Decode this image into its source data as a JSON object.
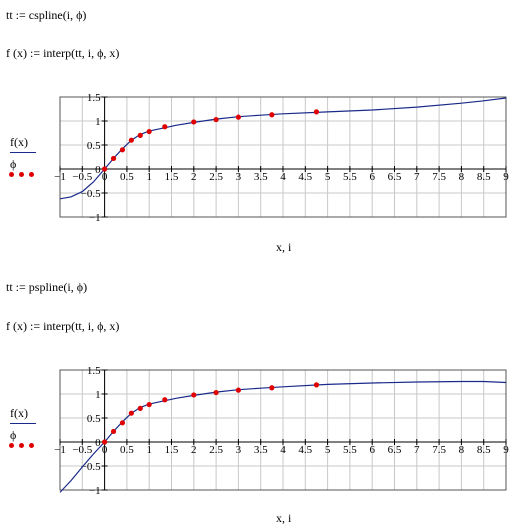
{
  "plot1": {
    "def_tt": "tt := cspline(i, ϕ)",
    "def_f": "f (x) := interp(tt, i, ϕ, x)",
    "legend_fx": "f(x)",
    "legend_phi": "ϕ",
    "xlabel": "x, i",
    "xticks": [
      "−1",
      "−0.5",
      "0",
      "0.5",
      "1",
      "1.5",
      "2",
      "2.5",
      "3",
      "3.5",
      "4",
      "4.5",
      "5",
      "5.5",
      "6",
      "6.5",
      "7",
      "7.5",
      "8",
      "8.5",
      "9"
    ],
    "yticks": [
      "1.5",
      "1",
      "0.5",
      "0",
      "−0.5",
      "−1"
    ]
  },
  "plot2": {
    "def_tt": "tt := pspline(i, ϕ)",
    "def_f": "f (x) := interp(tt, i, ϕ, x)",
    "legend_fx": "f(x)",
    "legend_phi": "ϕ",
    "xlabel": "x, i",
    "xticks": [
      "−1",
      "−0.5",
      "0",
      "0.5",
      "1",
      "1.5",
      "2",
      "2.5",
      "3",
      "3.5",
      "4",
      "4.5",
      "5",
      "5.5",
      "6",
      "6.5",
      "7",
      "7.5",
      "8",
      "8.5",
      "9"
    ],
    "yticks": [
      "1.5",
      "1",
      "0.5",
      "0",
      "−0.5",
      "−1"
    ]
  },
  "chart_data": [
    {
      "type": "line",
      "xlim": [
        -1,
        9
      ],
      "ylim": [
        -1,
        1.5
      ],
      "grid": true,
      "series": [
        {
          "kind": "curve",
          "color": "#1a2a8a",
          "x": [
            -1,
            -0.75,
            -0.5,
            -0.25,
            0,
            0.2,
            0.4,
            0.6,
            0.8,
            1,
            1.3,
            1.6,
            2,
            2.5,
            3,
            3.5,
            4,
            5,
            6,
            7,
            8,
            8.5,
            9
          ],
          "y": [
            -0.62,
            -0.58,
            -0.47,
            -0.27,
            0,
            0.22,
            0.42,
            0.6,
            0.72,
            0.79,
            0.85,
            0.91,
            0.97,
            1.04,
            1.09,
            1.12,
            1.15,
            1.19,
            1.23,
            1.29,
            1.37,
            1.42,
            1.48
          ]
        },
        {
          "kind": "points",
          "color": "#e00000",
          "x": [
            0,
            0.2,
            0.4,
            0.6,
            0.8,
            1,
            1.35,
            2,
            2.5,
            3,
            3.75,
            4.75
          ],
          "y": [
            0,
            0.22,
            0.4,
            0.6,
            0.7,
            0.78,
            0.88,
            0.98,
            1.03,
            1.08,
            1.13,
            1.19
          ]
        }
      ]
    },
    {
      "type": "line",
      "xlim": [
        -1,
        9
      ],
      "ylim": [
        -1,
        1.5
      ],
      "grid": true,
      "series": [
        {
          "kind": "curve",
          "color": "#1a2a8a",
          "x": [
            -1,
            -0.75,
            -0.5,
            -0.25,
            0,
            0.2,
            0.4,
            0.6,
            0.8,
            1,
            1.3,
            1.6,
            2,
            2.5,
            3,
            3.5,
            4,
            5,
            6,
            7,
            8,
            8.5,
            9
          ],
          "y": [
            -1.05,
            -0.8,
            -0.52,
            -0.25,
            0,
            0.22,
            0.42,
            0.6,
            0.72,
            0.79,
            0.85,
            0.91,
            0.97,
            1.04,
            1.09,
            1.12,
            1.15,
            1.2,
            1.23,
            1.25,
            1.26,
            1.26,
            1.24
          ]
        },
        {
          "kind": "points",
          "color": "#e00000",
          "x": [
            0,
            0.2,
            0.4,
            0.6,
            0.8,
            1,
            1.35,
            2,
            2.5,
            3,
            3.75,
            4.75
          ],
          "y": [
            0,
            0.22,
            0.4,
            0.6,
            0.7,
            0.78,
            0.88,
            0.98,
            1.03,
            1.08,
            1.13,
            1.19
          ]
        }
      ]
    }
  ]
}
